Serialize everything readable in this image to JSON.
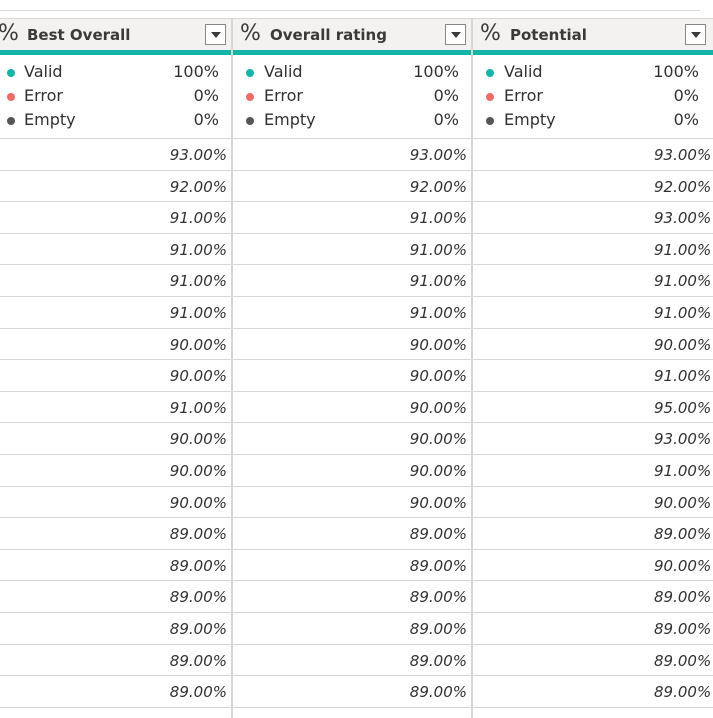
{
  "colors": {
    "valid": "#13b5a8",
    "error": "#f06a6a",
    "empty": "#555555",
    "header_bg": "#f3f2f1"
  },
  "columns": [
    {
      "type_icon": "%",
      "title": "Best Overall",
      "stats": {
        "valid_label": "Valid",
        "valid_pct": "100%",
        "error_label": "Error",
        "error_pct": "0%",
        "empty_label": "Empty",
        "empty_pct": "0%"
      },
      "rows": [
        "93.00%",
        "92.00%",
        "91.00%",
        "91.00%",
        "91.00%",
        "91.00%",
        "90.00%",
        "90.00%",
        "91.00%",
        "90.00%",
        "90.00%",
        "90.00%",
        "89.00%",
        "89.00%",
        "89.00%",
        "89.00%",
        "89.00%",
        "89.00%"
      ]
    },
    {
      "type_icon": "%",
      "title": "Overall rating",
      "stats": {
        "valid_label": "Valid",
        "valid_pct": "100%",
        "error_label": "Error",
        "error_pct": "0%",
        "empty_label": "Empty",
        "empty_pct": "0%"
      },
      "rows": [
        "93.00%",
        "92.00%",
        "91.00%",
        "91.00%",
        "91.00%",
        "91.00%",
        "90.00%",
        "90.00%",
        "90.00%",
        "90.00%",
        "90.00%",
        "90.00%",
        "89.00%",
        "89.00%",
        "89.00%",
        "89.00%",
        "89.00%",
        "89.00%"
      ]
    },
    {
      "type_icon": "%",
      "title": "Potential",
      "stats": {
        "valid_label": "Valid",
        "valid_pct": "100%",
        "error_label": "Error",
        "error_pct": "0%",
        "empty_label": "Empty",
        "empty_pct": "0%"
      },
      "rows": [
        "93.00%",
        "92.00%",
        "93.00%",
        "91.00%",
        "91.00%",
        "91.00%",
        "90.00%",
        "91.00%",
        "95.00%",
        "93.00%",
        "91.00%",
        "90.00%",
        "89.00%",
        "90.00%",
        "89.00%",
        "89.00%",
        "89.00%",
        "89.00%"
      ]
    }
  ]
}
